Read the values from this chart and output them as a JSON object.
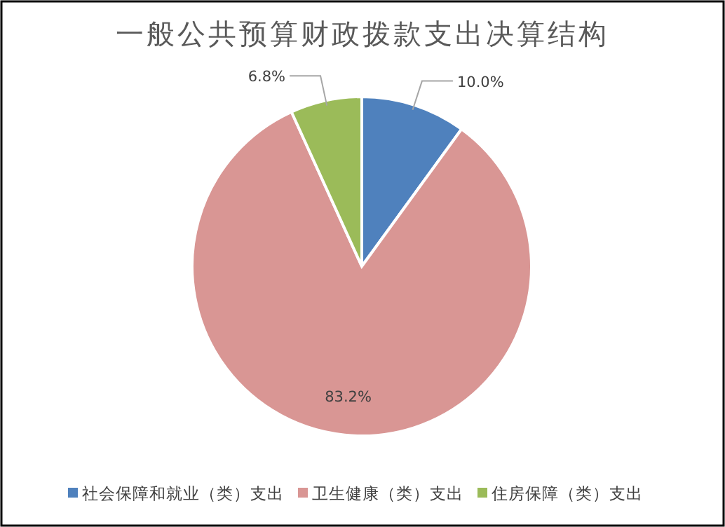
{
  "chart_data": {
    "type": "pie",
    "title": "一般公共预算财政拨款支出决算结构",
    "categories": [
      "社会保障和就业（类）支出",
      "卫生健康（类）支出",
      "住房保障（类）支出"
    ],
    "values": [
      10.0,
      83.2,
      6.8
    ],
    "colors": [
      "#4f81bd",
      "#d99694",
      "#9bbb59"
    ],
    "value_labels": [
      "10.0%",
      "83.2%",
      "6.8%"
    ],
    "legend": "bottom"
  }
}
